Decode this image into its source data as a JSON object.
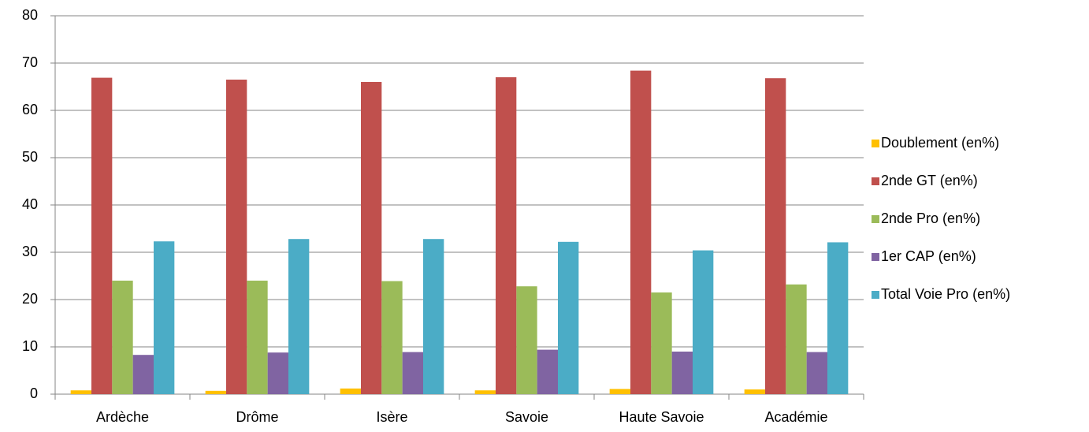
{
  "chart_data": {
    "type": "bar",
    "categories": [
      "Ardèche",
      "Drôme",
      "Isère",
      "Savoie",
      "Haute Savoie",
      "Académie"
    ],
    "series": [
      {
        "name": "Doublement (en%)",
        "color": "#ffc000",
        "values": [
          0.8,
          0.7,
          1.2,
          0.8,
          1.1,
          1.0
        ]
      },
      {
        "name": "2nde GT (en%)",
        "color": "#c0504d",
        "values": [
          66.9,
          66.5,
          66.0,
          67.0,
          68.4,
          66.8
        ]
      },
      {
        "name": "2nde Pro (en%)",
        "color": "#9bbb59",
        "values": [
          24.0,
          24.0,
          23.9,
          22.8,
          21.5,
          23.2
        ]
      },
      {
        "name": "1er CAP (en%)",
        "color": "#8064a2",
        "values": [
          8.3,
          8.8,
          8.9,
          9.4,
          9.0,
          8.9
        ]
      },
      {
        "name": "Total Voie Pro (en%)",
        "color": "#4bacc6",
        "values": [
          32.3,
          32.8,
          32.8,
          32.2,
          30.4,
          32.1
        ]
      }
    ],
    "ylim": [
      0,
      80
    ],
    "yticks": [
      0,
      10,
      20,
      30,
      40,
      50,
      60,
      70,
      80
    ],
    "grid": true,
    "legend": "right"
  }
}
